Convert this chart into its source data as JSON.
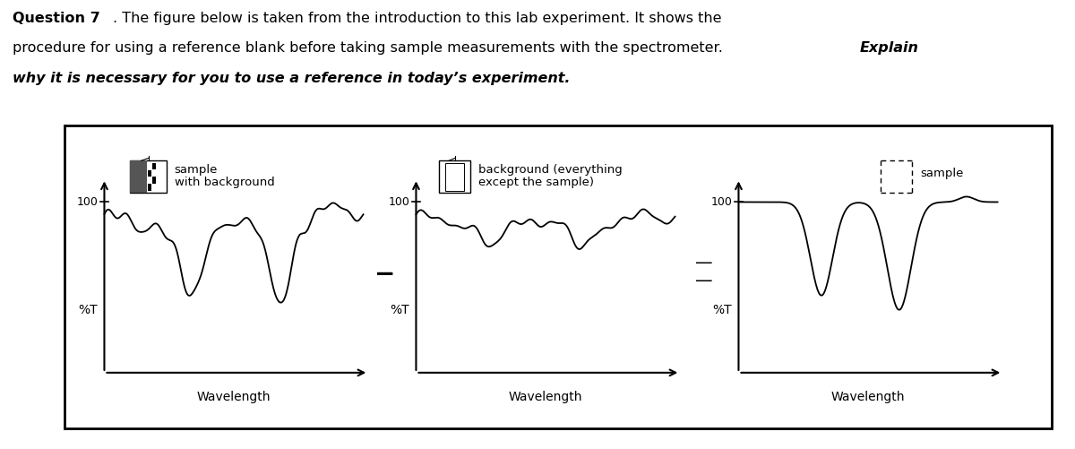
{
  "bg_color": "#ffffff",
  "panel1_label_line1": "sample",
  "panel1_label_line2": "with background",
  "panel2_label_line1": "background (everything",
  "panel2_label_line2": "except the sample)",
  "panel3_label": "sample",
  "ylabel": "%T",
  "xlabel": "Wavelength",
  "y100_label": "100"
}
